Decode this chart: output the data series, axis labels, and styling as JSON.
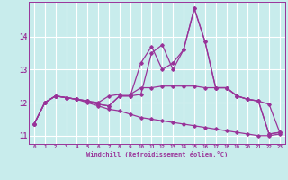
{
  "xlabel": "Windchill (Refroidissement éolien,°C)",
  "background_color": "#c8ecec",
  "grid_color": "#ffffff",
  "line_color": "#993399",
  "x": [
    0,
    1,
    2,
    3,
    4,
    5,
    6,
    7,
    8,
    9,
    10,
    11,
    12,
    13,
    14,
    15,
    16,
    17,
    18,
    19,
    20,
    21,
    22,
    23
  ],
  "curve1": [
    11.35,
    12.0,
    12.2,
    12.15,
    12.1,
    12.05,
    12.0,
    12.2,
    12.25,
    12.25,
    12.45,
    12.45,
    12.5,
    12.5,
    12.5,
    12.5,
    12.45,
    12.45,
    12.45,
    12.2,
    12.1,
    12.05,
    11.95,
    11.1
  ],
  "curve2": [
    11.35,
    12.0,
    12.2,
    12.15,
    12.1,
    12.05,
    11.95,
    11.9,
    12.2,
    12.2,
    12.25,
    13.5,
    13.75,
    13.0,
    13.6,
    14.85,
    13.85,
    12.45,
    12.45,
    12.2,
    12.1,
    12.05,
    11.05,
    11.1
  ],
  "curve3": [
    11.35,
    12.0,
    12.2,
    12.15,
    12.1,
    12.05,
    11.95,
    11.9,
    12.2,
    12.2,
    13.2,
    13.7,
    13.0,
    13.2,
    13.6,
    14.85,
    13.85,
    12.45,
    12.45,
    12.2,
    12.1,
    12.05,
    11.05,
    11.1
  ],
  "curve4": [
    11.35,
    12.0,
    12.2,
    12.15,
    12.1,
    12.0,
    11.9,
    11.8,
    11.75,
    11.65,
    11.55,
    11.5,
    11.45,
    11.4,
    11.35,
    11.3,
    11.25,
    11.2,
    11.15,
    11.1,
    11.05,
    11.0,
    11.0,
    11.05
  ],
  "ylim": [
    10.75,
    15.05
  ],
  "xlim": [
    -0.5,
    23.5
  ],
  "yticks": [
    11,
    12,
    13,
    14
  ],
  "xticks": [
    0,
    1,
    2,
    3,
    4,
    5,
    6,
    7,
    8,
    9,
    10,
    11,
    12,
    13,
    14,
    15,
    16,
    17,
    18,
    19,
    20,
    21,
    22,
    23
  ]
}
